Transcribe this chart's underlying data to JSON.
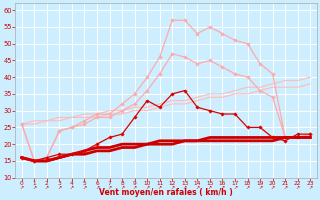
{
  "xlabel": "Vent moyen/en rafales ( km/h )",
  "xlim": [
    -0.5,
    23.5
  ],
  "ylim": [
    10,
    62
  ],
  "yticks": [
    10,
    15,
    20,
    25,
    30,
    35,
    40,
    45,
    50,
    55,
    60
  ],
  "xticks": [
    0,
    1,
    2,
    3,
    4,
    5,
    6,
    7,
    8,
    9,
    10,
    11,
    12,
    13,
    14,
    15,
    16,
    17,
    18,
    19,
    20,
    21,
    22,
    23
  ],
  "bg_color": "#cceeff",
  "grid_color": "#ffffff",
  "series": [
    {
      "name": "light_pink_high1",
      "color": "#ffaaaa",
      "lw": 0.9,
      "marker": "D",
      "ms": 1.8,
      "zorder": 3,
      "x": [
        0,
        1,
        2,
        3,
        4,
        5,
        6,
        7,
        8,
        9,
        10,
        11,
        12,
        13,
        14,
        15,
        16,
        17,
        18,
        19,
        20,
        21,
        22,
        23
      ],
      "y": [
        26,
        15,
        16,
        24,
        25,
        27,
        29,
        29,
        32,
        35,
        40,
        46,
        57,
        57,
        53,
        55,
        53,
        51,
        50,
        44,
        41,
        22,
        22,
        23
      ]
    },
    {
      "name": "light_pink_high2",
      "color": "#ffaaaa",
      "lw": 0.9,
      "marker": "D",
      "ms": 1.8,
      "zorder": 3,
      "x": [
        0,
        1,
        2,
        3,
        4,
        5,
        6,
        7,
        8,
        9,
        10,
        11,
        12,
        13,
        14,
        15,
        16,
        17,
        18,
        19,
        20,
        21,
        22,
        23
      ],
      "y": [
        26,
        15,
        16,
        24,
        25,
        26,
        28,
        28,
        30,
        32,
        36,
        41,
        47,
        46,
        44,
        45,
        43,
        41,
        40,
        36,
        34,
        22,
        22,
        23
      ]
    },
    {
      "name": "light_line1",
      "color": "#ffbbbb",
      "lw": 0.8,
      "marker": null,
      "ms": 0,
      "zorder": 2,
      "x": [
        0,
        1,
        2,
        3,
        4,
        5,
        6,
        7,
        8,
        9,
        10,
        11,
        12,
        13,
        14,
        15,
        16,
        17,
        18,
        19,
        20,
        21,
        22,
        23
      ],
      "y": [
        26,
        27,
        27,
        28,
        28,
        29,
        29,
        30,
        30,
        31,
        31,
        32,
        33,
        33,
        34,
        35,
        35,
        36,
        37,
        37,
        38,
        39,
        39,
        40
      ]
    },
    {
      "name": "light_line2",
      "color": "#ffbbbb",
      "lw": 0.8,
      "marker": null,
      "ms": 0,
      "zorder": 2,
      "x": [
        0,
        1,
        2,
        3,
        4,
        5,
        6,
        7,
        8,
        9,
        10,
        11,
        12,
        13,
        14,
        15,
        16,
        17,
        18,
        19,
        20,
        21,
        22,
        23
      ],
      "y": [
        26,
        26,
        27,
        27,
        28,
        28,
        28,
        29,
        29,
        30,
        30,
        31,
        32,
        32,
        33,
        34,
        34,
        35,
        35,
        36,
        37,
        37,
        37,
        38
      ]
    },
    {
      "name": "dark_red_marker",
      "color": "#dd0000",
      "lw": 0.9,
      "marker": "D",
      "ms": 1.8,
      "zorder": 5,
      "x": [
        0,
        1,
        2,
        3,
        4,
        5,
        6,
        7,
        8,
        9,
        10,
        11,
        12,
        13,
        14,
        15,
        16,
        17,
        18,
        19,
        20,
        21,
        22,
        23
      ],
      "y": [
        16,
        15,
        16,
        17,
        17,
        18,
        20,
        22,
        23,
        28,
        33,
        31,
        35,
        36,
        31,
        30,
        29,
        29,
        25,
        25,
        22,
        21,
        23,
        23
      ]
    },
    {
      "name": "dark_bold1",
      "color": "#cc0000",
      "lw": 2.0,
      "marker": null,
      "ms": 0,
      "zorder": 4,
      "x": [
        0,
        1,
        2,
        3,
        4,
        5,
        6,
        7,
        8,
        9,
        10,
        11,
        12,
        13,
        14,
        15,
        16,
        17,
        18,
        19,
        20,
        21,
        22,
        23
      ],
      "y": [
        16,
        15,
        15,
        16,
        17,
        18,
        19,
        19,
        20,
        20,
        20,
        21,
        21,
        21,
        21,
        22,
        22,
        22,
        22,
        22,
        22,
        22,
        22,
        22
      ]
    },
    {
      "name": "dark_bold2",
      "color": "#cc0000",
      "lw": 2.0,
      "marker": null,
      "ms": 0,
      "zorder": 4,
      "x": [
        0,
        1,
        2,
        3,
        4,
        5,
        6,
        7,
        8,
        9,
        10,
        11,
        12,
        13,
        14,
        15,
        16,
        17,
        18,
        19,
        20,
        21,
        22,
        23
      ],
      "y": [
        16,
        15,
        15,
        16,
        17,
        17,
        18,
        18,
        19,
        19,
        20,
        20,
        20,
        21,
        21,
        21,
        21,
        21,
        21,
        21,
        21,
        22,
        22,
        22
      ]
    },
    {
      "name": "dark_thin",
      "color": "#cc0000",
      "lw": 0.7,
      "marker": null,
      "ms": 0,
      "zorder": 4,
      "x": [
        0,
        1,
        2,
        3,
        4,
        5,
        6,
        7,
        8,
        9,
        10,
        11,
        12,
        13,
        14,
        15,
        16,
        17,
        18,
        19,
        20,
        21,
        22,
        23
      ],
      "y": [
        16,
        15,
        15,
        16,
        17,
        17,
        18,
        18,
        19,
        19,
        20,
        20,
        20,
        21,
        21,
        21,
        21,
        21,
        21,
        21,
        21,
        22,
        22,
        22
      ]
    }
  ]
}
